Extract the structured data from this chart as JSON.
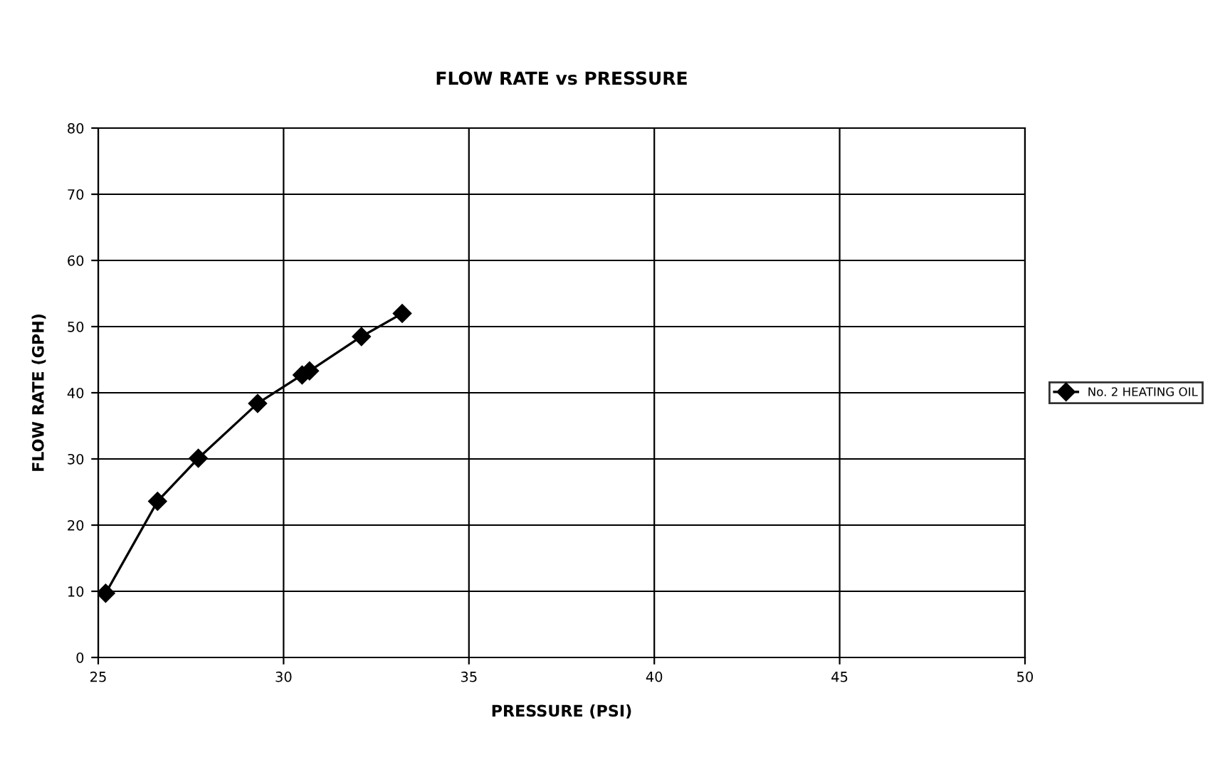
{
  "chart_data": {
    "type": "line",
    "title": "FLOW RATE vs PRESSURE",
    "xlabel": "PRESSURE (PSI)",
    "ylabel": "FLOW RATE (GPH)",
    "x": [
      25.2,
      26.6,
      27.7,
      29.3,
      30.5,
      30.7,
      32.1,
      33.2
    ],
    "series": [
      {
        "name": "No. 2 HEATING OIL",
        "color": "#000000",
        "values": [
          9.7,
          23.6,
          30.1,
          38.4,
          42.7,
          43.3,
          48.5,
          52.0
        ]
      }
    ],
    "xlim": [
      25,
      50
    ],
    "xticks": [
      25,
      30,
      35,
      40,
      45,
      50
    ],
    "ylim": [
      0,
      80
    ],
    "yticks": [
      0,
      10,
      20,
      30,
      40,
      50,
      60,
      70,
      80
    ],
    "grid": true,
    "legend": "right",
    "marker": "diamond",
    "line_style": "solid"
  }
}
